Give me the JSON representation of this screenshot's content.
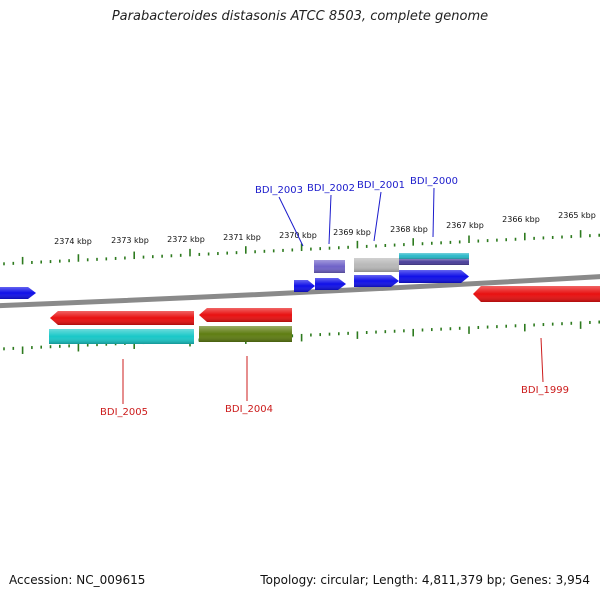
{
  "title": "Parabacteroides distasonis ATCC 8503, complete genome",
  "footer": {
    "accession": "Accession: NC_009615",
    "summary": "Topology: circular; Length: 4,811,379 bp; Genes: 3,954"
  },
  "colors": {
    "backbone": "#8a8a8a",
    "tick": "#2d7a1e",
    "forward_label": "#1c1ccc",
    "reverse_label": "#cc1c1c"
  },
  "scale": {
    "unit": "kbp",
    "labels": [
      2374,
      2373,
      2372,
      2371,
      2370,
      2369,
      2368,
      2367,
      2366,
      2365
    ]
  },
  "genes": {
    "forward": [
      {
        "kind": "arrow",
        "color": "#1010e8"
      },
      {
        "kind": "arrow",
        "color": "#1010e8"
      },
      {
        "kind": "arrow",
        "color": "#1010e8"
      },
      {
        "kind": "arrow",
        "color": "#1010e8"
      },
      {
        "kind": "arrow",
        "color": "#1010e8"
      },
      {
        "kind": "arrow",
        "color": "#1010e8"
      }
    ],
    "forward_annotations": [
      {
        "kind": "box",
        "color": "#6f62c8"
      },
      {
        "kind": "box",
        "color": "#b8b8b8"
      },
      {
        "kind": "box",
        "color": "#2ab8c8"
      },
      {
        "kind": "box",
        "color": "#4a3f9a"
      }
    ],
    "reverse": [
      {
        "kind": "arrow",
        "color": "#e81010"
      },
      {
        "kind": "arrow",
        "color": "#e81010"
      },
      {
        "kind": "arrow",
        "color": "#e81010"
      }
    ],
    "reverse_annotations": [
      {
        "kind": "box",
        "color": "#19c8c8"
      },
      {
        "kind": "box",
        "color": "#5f7d12"
      }
    ]
  },
  "labels": {
    "forward": [
      "BDI_2003",
      "BDI_2002",
      "BDI_2001",
      "BDI_2000"
    ],
    "reverse": [
      "BDI_2005",
      "BDI_2004",
      "BDI_1999"
    ]
  }
}
